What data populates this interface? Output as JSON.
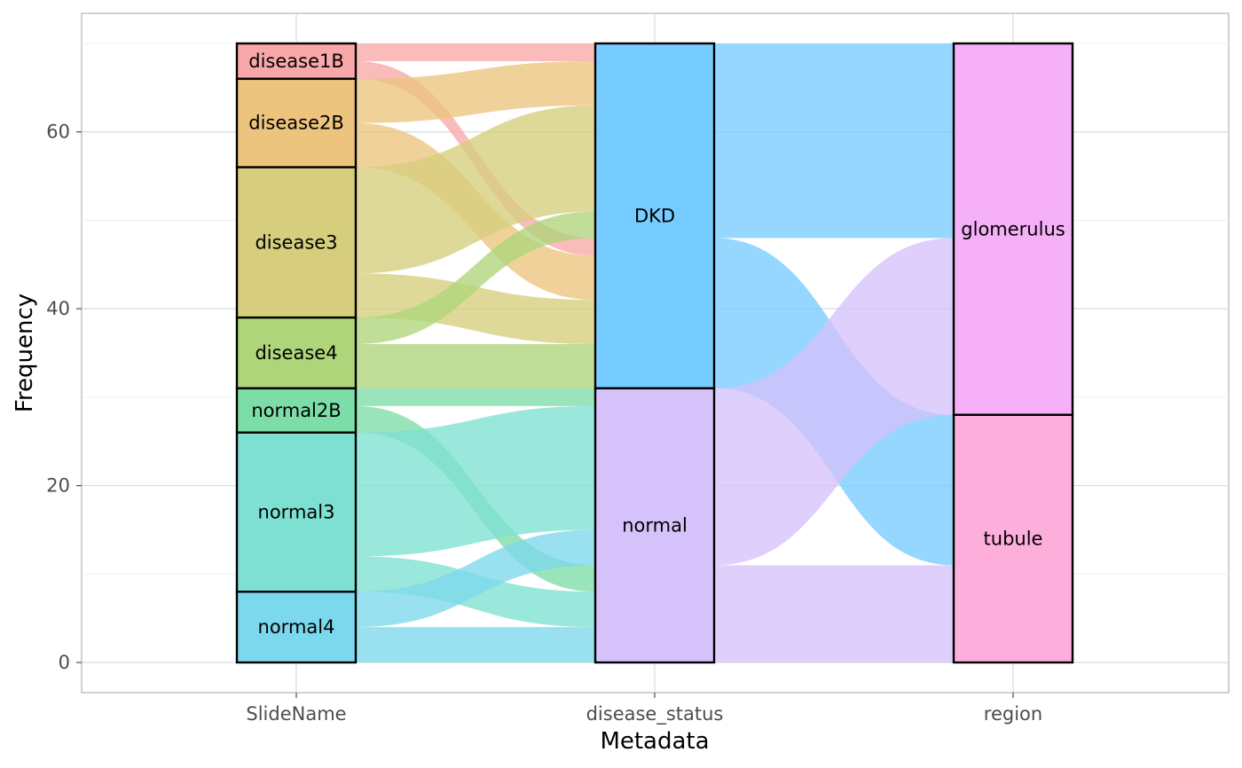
{
  "chart_data": {
    "type": "alluvial",
    "xlabel": "Metadata",
    "ylabel": "Frequency",
    "ylim": [
      0,
      70
    ],
    "yticks": [
      0,
      20,
      40,
      60
    ],
    "grid": true,
    "axes": [
      "SlideName",
      "disease_status",
      "region"
    ],
    "strata": {
      "SlideName": [
        {
          "name": "disease1B",
          "value": 4,
          "color": "#F8A8A8"
        },
        {
          "name": "disease2B",
          "value": 10,
          "color": "#EDC47E"
        },
        {
          "name": "disease3",
          "value": 17,
          "color": "#D6CE7C"
        },
        {
          "name": "disease4",
          "value": 8,
          "color": "#AED57A"
        },
        {
          "name": "normal2B",
          "value": 5,
          "color": "#7DDDA8"
        },
        {
          "name": "normal3",
          "value": 18,
          "color": "#7EE0D2"
        },
        {
          "name": "normal4",
          "value": 8,
          "color": "#7CD8EC"
        }
      ],
      "disease_status": [
        {
          "name": "DKD",
          "value": 39,
          "color": "#77CCFF"
        },
        {
          "name": "normal",
          "value": 31,
          "color": "#D5C2FB"
        }
      ],
      "region": [
        {
          "name": "glomerulus",
          "value": 42,
          "color": "#F5B0F7"
        },
        {
          "name": "tubule",
          "value": 28,
          "color": "#FDAEDB"
        }
      ]
    },
    "flows_slide_to_status": [
      {
        "from": "disease1B",
        "to": "DKD",
        "region": "glomerulus",
        "value": 2,
        "color": "#F8A8A8"
      },
      {
        "from": "disease1B",
        "to": "DKD",
        "region": "tubule",
        "value": 2,
        "color": "#F8A8A8"
      },
      {
        "from": "disease2B",
        "to": "DKD",
        "region": "glomerulus",
        "value": 5,
        "color": "#EDC47E"
      },
      {
        "from": "disease2B",
        "to": "DKD",
        "region": "tubule",
        "value": 5,
        "color": "#EDC47E"
      },
      {
        "from": "disease3",
        "to": "DKD",
        "region": "glomerulus",
        "value": 12,
        "color": "#D6CE7C"
      },
      {
        "from": "disease3",
        "to": "DKD",
        "region": "tubule",
        "value": 5,
        "color": "#D6CE7C"
      },
      {
        "from": "disease4",
        "to": "DKD",
        "region": "glomerulus",
        "value": 3,
        "color": "#AED57A"
      },
      {
        "from": "disease4",
        "to": "DKD",
        "region": "tubule",
        "value": 5,
        "color": "#AED57A"
      },
      {
        "from": "normal2B",
        "to": "normal",
        "region": "glomerulus",
        "value": 2,
        "color": "#7DDDA8"
      },
      {
        "from": "normal2B",
        "to": "normal",
        "region": "tubule",
        "value": 3,
        "color": "#7DDDA8"
      },
      {
        "from": "normal3",
        "to": "normal",
        "region": "glomerulus",
        "value": 14,
        "color": "#7EE0D2"
      },
      {
        "from": "normal3",
        "to": "normal",
        "region": "tubule",
        "value": 4,
        "color": "#7EE0D2"
      },
      {
        "from": "normal4",
        "to": "normal",
        "region": "glomerulus",
        "value": 4,
        "color": "#7CD8EC"
      },
      {
        "from": "normal4",
        "to": "normal",
        "region": "tubule",
        "value": 4,
        "color": "#7CD8EC"
      }
    ],
    "flows_status_to_region": [
      {
        "from": "DKD",
        "to": "glomerulus",
        "value": 22,
        "color": "#77CCFF"
      },
      {
        "from": "DKD",
        "to": "tubule",
        "value": 17,
        "color": "#77CCFF"
      },
      {
        "from": "normal",
        "to": "glomerulus",
        "value": 20,
        "color": "#D5C2FB"
      },
      {
        "from": "normal",
        "to": "tubule",
        "value": 11,
        "color": "#D5C2FB"
      }
    ]
  }
}
